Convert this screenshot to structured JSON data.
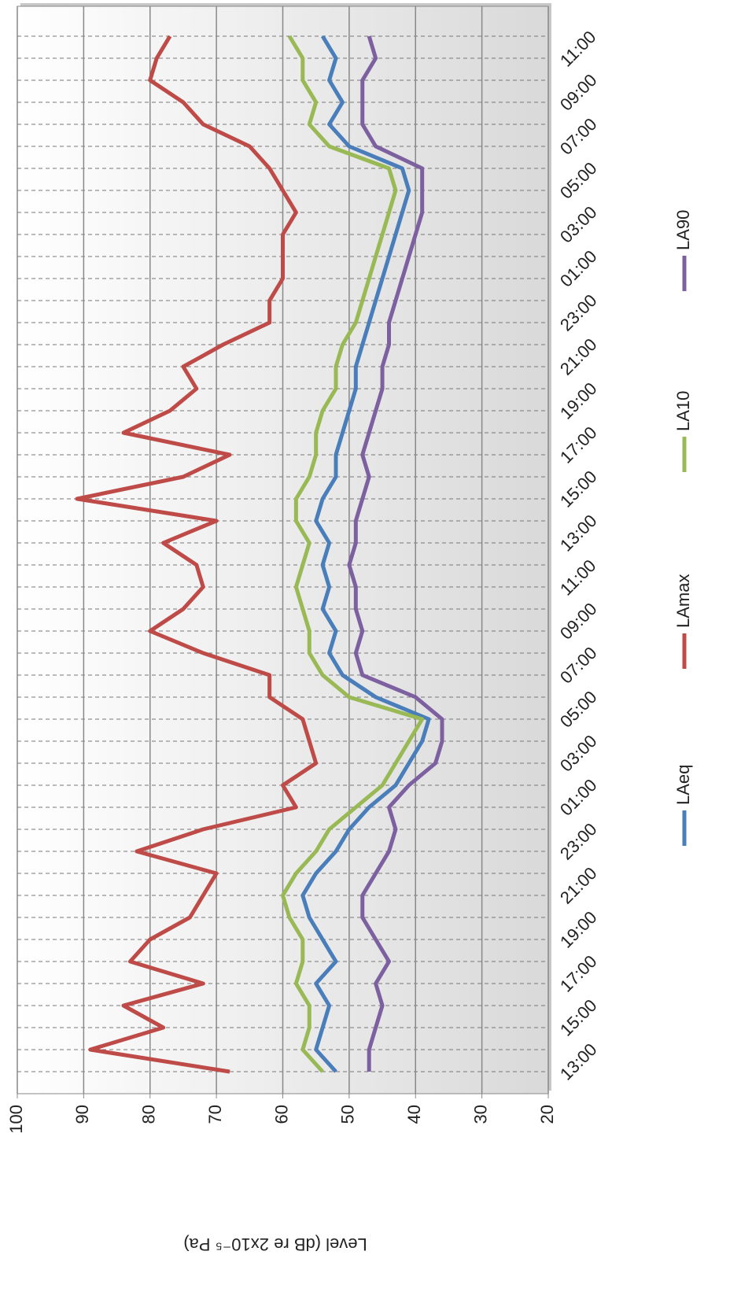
{
  "chart_data": {
    "type": "line",
    "y_axis_label": "Level (dB re 2x10⁻⁵ Pa)",
    "categories": [
      "13:00",
      null,
      "15:00",
      null,
      "17:00",
      null,
      "19:00",
      null,
      "21:00",
      null,
      "23:00",
      null,
      "01:00",
      null,
      "03:00",
      null,
      "05:00",
      null,
      "07:00",
      null,
      "09:00",
      null,
      "11:00",
      null,
      "13:00",
      null,
      "15:00",
      null,
      "17:00",
      null,
      "19:00",
      null,
      "21:00",
      null,
      "23:00",
      null,
      "01:00",
      null,
      "03:00",
      null,
      "05:00",
      null,
      "07:00",
      null,
      "09:00",
      null,
      "11:00",
      null
    ],
    "series": [
      {
        "name": "LAeq",
        "color": "#4a7ebb",
        "values": [
          52,
          55,
          54,
          53,
          55,
          52,
          54,
          56,
          57,
          55,
          52,
          50,
          47,
          43,
          41,
          39,
          38,
          46,
          51,
          53,
          52,
          54,
          53,
          54,
          53,
          55,
          54,
          52,
          52,
          51,
          50,
          49,
          49,
          48,
          47,
          46,
          45,
          44,
          43,
          42,
          41,
          42,
          50,
          53,
          51,
          53,
          52,
          54
        ]
      },
      {
        "name": "LAmax",
        "color": "#be4b48",
        "values": [
          68,
          89,
          78,
          84,
          72,
          83,
          80,
          74,
          72,
          70,
          82,
          72,
          58,
          60,
          55,
          56,
          57,
          62,
          62,
          72,
          80,
          75,
          72,
          73,
          78,
          70,
          91,
          75,
          68,
          84,
          77,
          73,
          75,
          69,
          62,
          62,
          60,
          60,
          60,
          58,
          60,
          62,
          65,
          72,
          75,
          80,
          79,
          77
        ]
      },
      {
        "name": "LA10",
        "color": "#98b954",
        "values": [
          54,
          57,
          56,
          56,
          58,
          57,
          57,
          59,
          60,
          58,
          55,
          53,
          49,
          45,
          43,
          41,
          39,
          50,
          54,
          56,
          56,
          57,
          58,
          57,
          56,
          58,
          58,
          56,
          55,
          55,
          54,
          52,
          52,
          51,
          49,
          48,
          47,
          46,
          45,
          44,
          43,
          44,
          53,
          56,
          55,
          57,
          57,
          59
        ]
      },
      {
        "name": "LA90",
        "color": "#7d60a0",
        "values": [
          47,
          47,
          46,
          45,
          46,
          44,
          46,
          48,
          48,
          46,
          44,
          43,
          44,
          41,
          37,
          36,
          36,
          40,
          48,
          49,
          48,
          49,
          49,
          50,
          49,
          49,
          48,
          47,
          48,
          47,
          46,
          45,
          45,
          44,
          44,
          43,
          42,
          41,
          40,
          39,
          39,
          39,
          46,
          48,
          48,
          48,
          46,
          47
        ]
      }
    ],
    "ylim": [
      20,
      100
    ],
    "yticks": [
      20,
      30,
      40,
      50,
      60,
      70,
      80,
      90,
      100
    ],
    "grid": true
  }
}
